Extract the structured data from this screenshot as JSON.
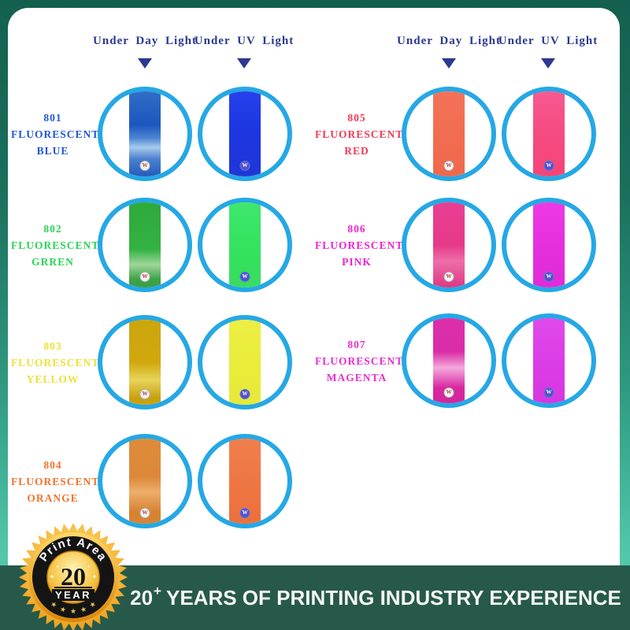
{
  "headers": {
    "day": "Under Day Light",
    "uv": "Under UV Light"
  },
  "groups": [
    {
      "rows": [
        {
          "code": "801",
          "family": "FLUORESCENT",
          "name": "BLUE",
          "label_color": "#2257D6",
          "day_gradient": "linear-gradient(180deg,#3170C6 0%,#1C57BE 40%,#4E86D4 55%,#A6CBEC 65%,#4C80CE 78%,#1E55B6 100%)",
          "uv_gradient": "linear-gradient(180deg,#2742EC 0%,#1B35E0 50%,#2036D6 100%)"
        },
        {
          "code": "802",
          "family": "FLUORESCENT",
          "name": "GRREN",
          "label_color": "#2BD455",
          "day_gradient": "linear-gradient(180deg,#2EA93A 0%,#33B242 55%,#9ED69A 72%,#3FA348 88%,#379E42 100%)",
          "uv_gradient": "linear-gradient(180deg,#40E86E 0%,#32E25C 60%,#3ADB62 100%)"
        },
        {
          "code": "803",
          "family": "FLUORESCENT",
          "name": "YELLOW",
          "label_color": "#EDE23B",
          "day_gradient": "linear-gradient(180deg,#CCA50C 0%,#D0A80E 50%,#E8D45A 70%,#C79F10 90%,#CBA513 100%)",
          "uv_gradient": "linear-gradient(180deg,#EDEE44 0%,#EAEC38 60%,#E6E93A 100%)"
        },
        {
          "code": "804",
          "family": "FLUORESCENT",
          "name": "ORANGE",
          "label_color": "#F2732F",
          "day_gradient": "linear-gradient(180deg,#DE8B3A 0%,#DC8838 45%,#ECAE6C 62%,#D6812F 85%,#DA8534 100%)",
          "uv_gradient": "linear-gradient(180deg,#F0804E 0%,#EE7542 60%,#EC6F3C 100%)"
        }
      ]
    },
    {
      "rows": [
        {
          "code": "805",
          "family": "FLUORESCENT",
          "name": "RED",
          "label_color": "#F23B55",
          "day_gradient": "linear-gradient(180deg,#F37358 0%,#F16C50 55%,#EF684A 100%)",
          "uv_gradient": "linear-gradient(180deg,#F75A92 0%,#F54A80 55%,#F44478 100%)"
        },
        {
          "code": "806",
          "family": "FLUORESCENT",
          "name": "PINK",
          "label_color": "#F222D0",
          "day_gradient": "linear-gradient(180deg,#E93F94 0%,#E63988 50%,#EE6FA8 68%,#DE3180 100%)",
          "uv_gradient": "linear-gradient(180deg,#EC3BE6 0%,#E52EDE 55%,#E02AD8 100%)"
        },
        {
          "code": "807",
          "family": "FLUORESCENT",
          "name": "MAGENTA",
          "label_color": "#E92FD0",
          "day_gradient": "linear-gradient(180deg,#DC2FAC 0%,#DA2CA6 40%,#F4AADC 58%,#D828A0 80%,#D4259C 100%)",
          "uv_gradient": "linear-gradient(180deg,#E04AEC 0%,#DA3CE6 55%,#D636E0 100%)"
        }
      ]
    }
  ],
  "sticker": {
    "letter": "W",
    "day": {
      "bg": "#F3F3EF",
      "border": "#A8BCCB",
      "letter_color": "#C23A3A"
    },
    "uv": {
      "bg": "#594ED0",
      "border": "#4A7FD4",
      "letter_color": "#FFFFFF"
    }
  },
  "badge": {
    "arc_text": "Print Area",
    "number": "20",
    "year": "YEAR",
    "gold": "#F0A81E",
    "ring": "#141414"
  },
  "banner": {
    "number": "20",
    "plus": "+",
    "text": "YEARS OF PRINTING INDUSTRY EXPERIENCE",
    "bg": "#27594B",
    "text_color": "#F6F6F2"
  },
  "colors": {
    "circle_ring": "#25A8E5",
    "header_navy": "#2B3990",
    "frame_top": "#14604F",
    "frame_bottom": "#52C8A9",
    "panel_bg": "#FFFFFF"
  }
}
